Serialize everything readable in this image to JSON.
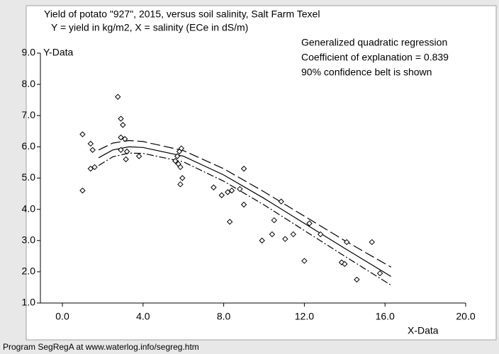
{
  "chart_data": {
    "type": "scatter",
    "title": "Yield of potato \"927\", 2015, versus soil salinity, Salt Farm Texel",
    "subtitle": "Y = yield in kg/m2,  X = salinity (ECe in dS/m)",
    "annotations": [
      "Generalized quadratic regression",
      "Coefficient of explanation = 0.839",
      "90% confidence belt is shown"
    ],
    "y_label": "Y-Data",
    "x_label": "X-Data",
    "xlim": [
      0,
      20
    ],
    "ylim": [
      1,
      9
    ],
    "xticks": [
      {
        "value": 0,
        "label": "0.0"
      },
      {
        "value": 4,
        "label": "4.0"
      },
      {
        "value": 8,
        "label": "8.0"
      },
      {
        "value": 12,
        "label": "12.0"
      },
      {
        "value": 16,
        "label": "16.0"
      },
      {
        "value": 20,
        "label": "20.0"
      }
    ],
    "yticks": [
      {
        "value": 1,
        "label": "1.0"
      },
      {
        "value": 2,
        "label": "2.0"
      },
      {
        "value": 3,
        "label": "3.0"
      },
      {
        "value": 4,
        "label": "4.0"
      },
      {
        "value": 5,
        "label": "5.0"
      },
      {
        "value": 6,
        "label": "6.0"
      },
      {
        "value": 7,
        "label": "7.0"
      },
      {
        "value": 8,
        "label": "8.0"
      },
      {
        "value": 9,
        "label": "9.0"
      }
    ],
    "color": "#000000",
    "x": [
      1.0,
      1.0,
      1.4,
      1.5,
      1.4,
      1.6,
      2.75,
      2.9,
      3.0,
      2.9,
      3.1,
      2.9,
      3.15,
      3.2,
      3.8,
      5.6,
      5.7,
      5.75,
      5.8,
      5.9,
      5.85,
      5.95,
      5.85,
      7.5,
      7.9,
      8.2,
      8.4,
      8.3,
      8.8,
      9.0,
      9.0,
      9.9,
      10.4,
      10.5,
      10.85,
      11.05,
      11.45,
      12.0,
      12.25,
      12.8,
      13.85,
      14.0,
      14.1,
      14.6,
      15.35,
      15.75
    ],
    "values": [
      6.4,
      4.6,
      6.1,
      5.9,
      5.3,
      5.35,
      7.6,
      6.9,
      6.7,
      6.3,
      6.25,
      5.9,
      5.6,
      5.85,
      5.7,
      5.55,
      5.7,
      5.45,
      5.85,
      5.95,
      5.35,
      5.0,
      4.8,
      4.7,
      4.45,
      4.55,
      4.6,
      3.6,
      4.65,
      4.15,
      5.3,
      3.0,
      3.2,
      3.65,
      4.25,
      3.05,
      3.2,
      2.35,
      3.55,
      3.2,
      2.3,
      2.25,
      2.95,
      1.75,
      2.95,
      1.95
    ],
    "curves": [
      {
        "dash": "solid",
        "x": [
          1.8,
          2.5,
          3.3,
          4,
          6,
          8,
          10,
          12,
          14,
          16.3
        ],
        "values": [
          5.65,
          5.9,
          6.0,
          5.98,
          5.7,
          5.1,
          4.35,
          3.55,
          2.75,
          1.85
        ]
      },
      {
        "dash": "long",
        "x": [
          1.8,
          2.5,
          3.3,
          4,
          6,
          8,
          10,
          12,
          14,
          16.3
        ],
        "values": [
          5.9,
          6.12,
          6.2,
          6.17,
          5.88,
          5.3,
          4.56,
          3.78,
          3.0,
          2.15
        ]
      },
      {
        "dash": "dashdot",
        "x": [
          1.8,
          2.5,
          3.3,
          4,
          6,
          8,
          10,
          12,
          14,
          16.3
        ],
        "values": [
          5.4,
          5.68,
          5.8,
          5.79,
          5.52,
          4.9,
          4.14,
          3.32,
          2.5,
          1.57
        ]
      }
    ]
  },
  "footer": "Program SegRegA at www.waterlog.info/segreg.htm"
}
